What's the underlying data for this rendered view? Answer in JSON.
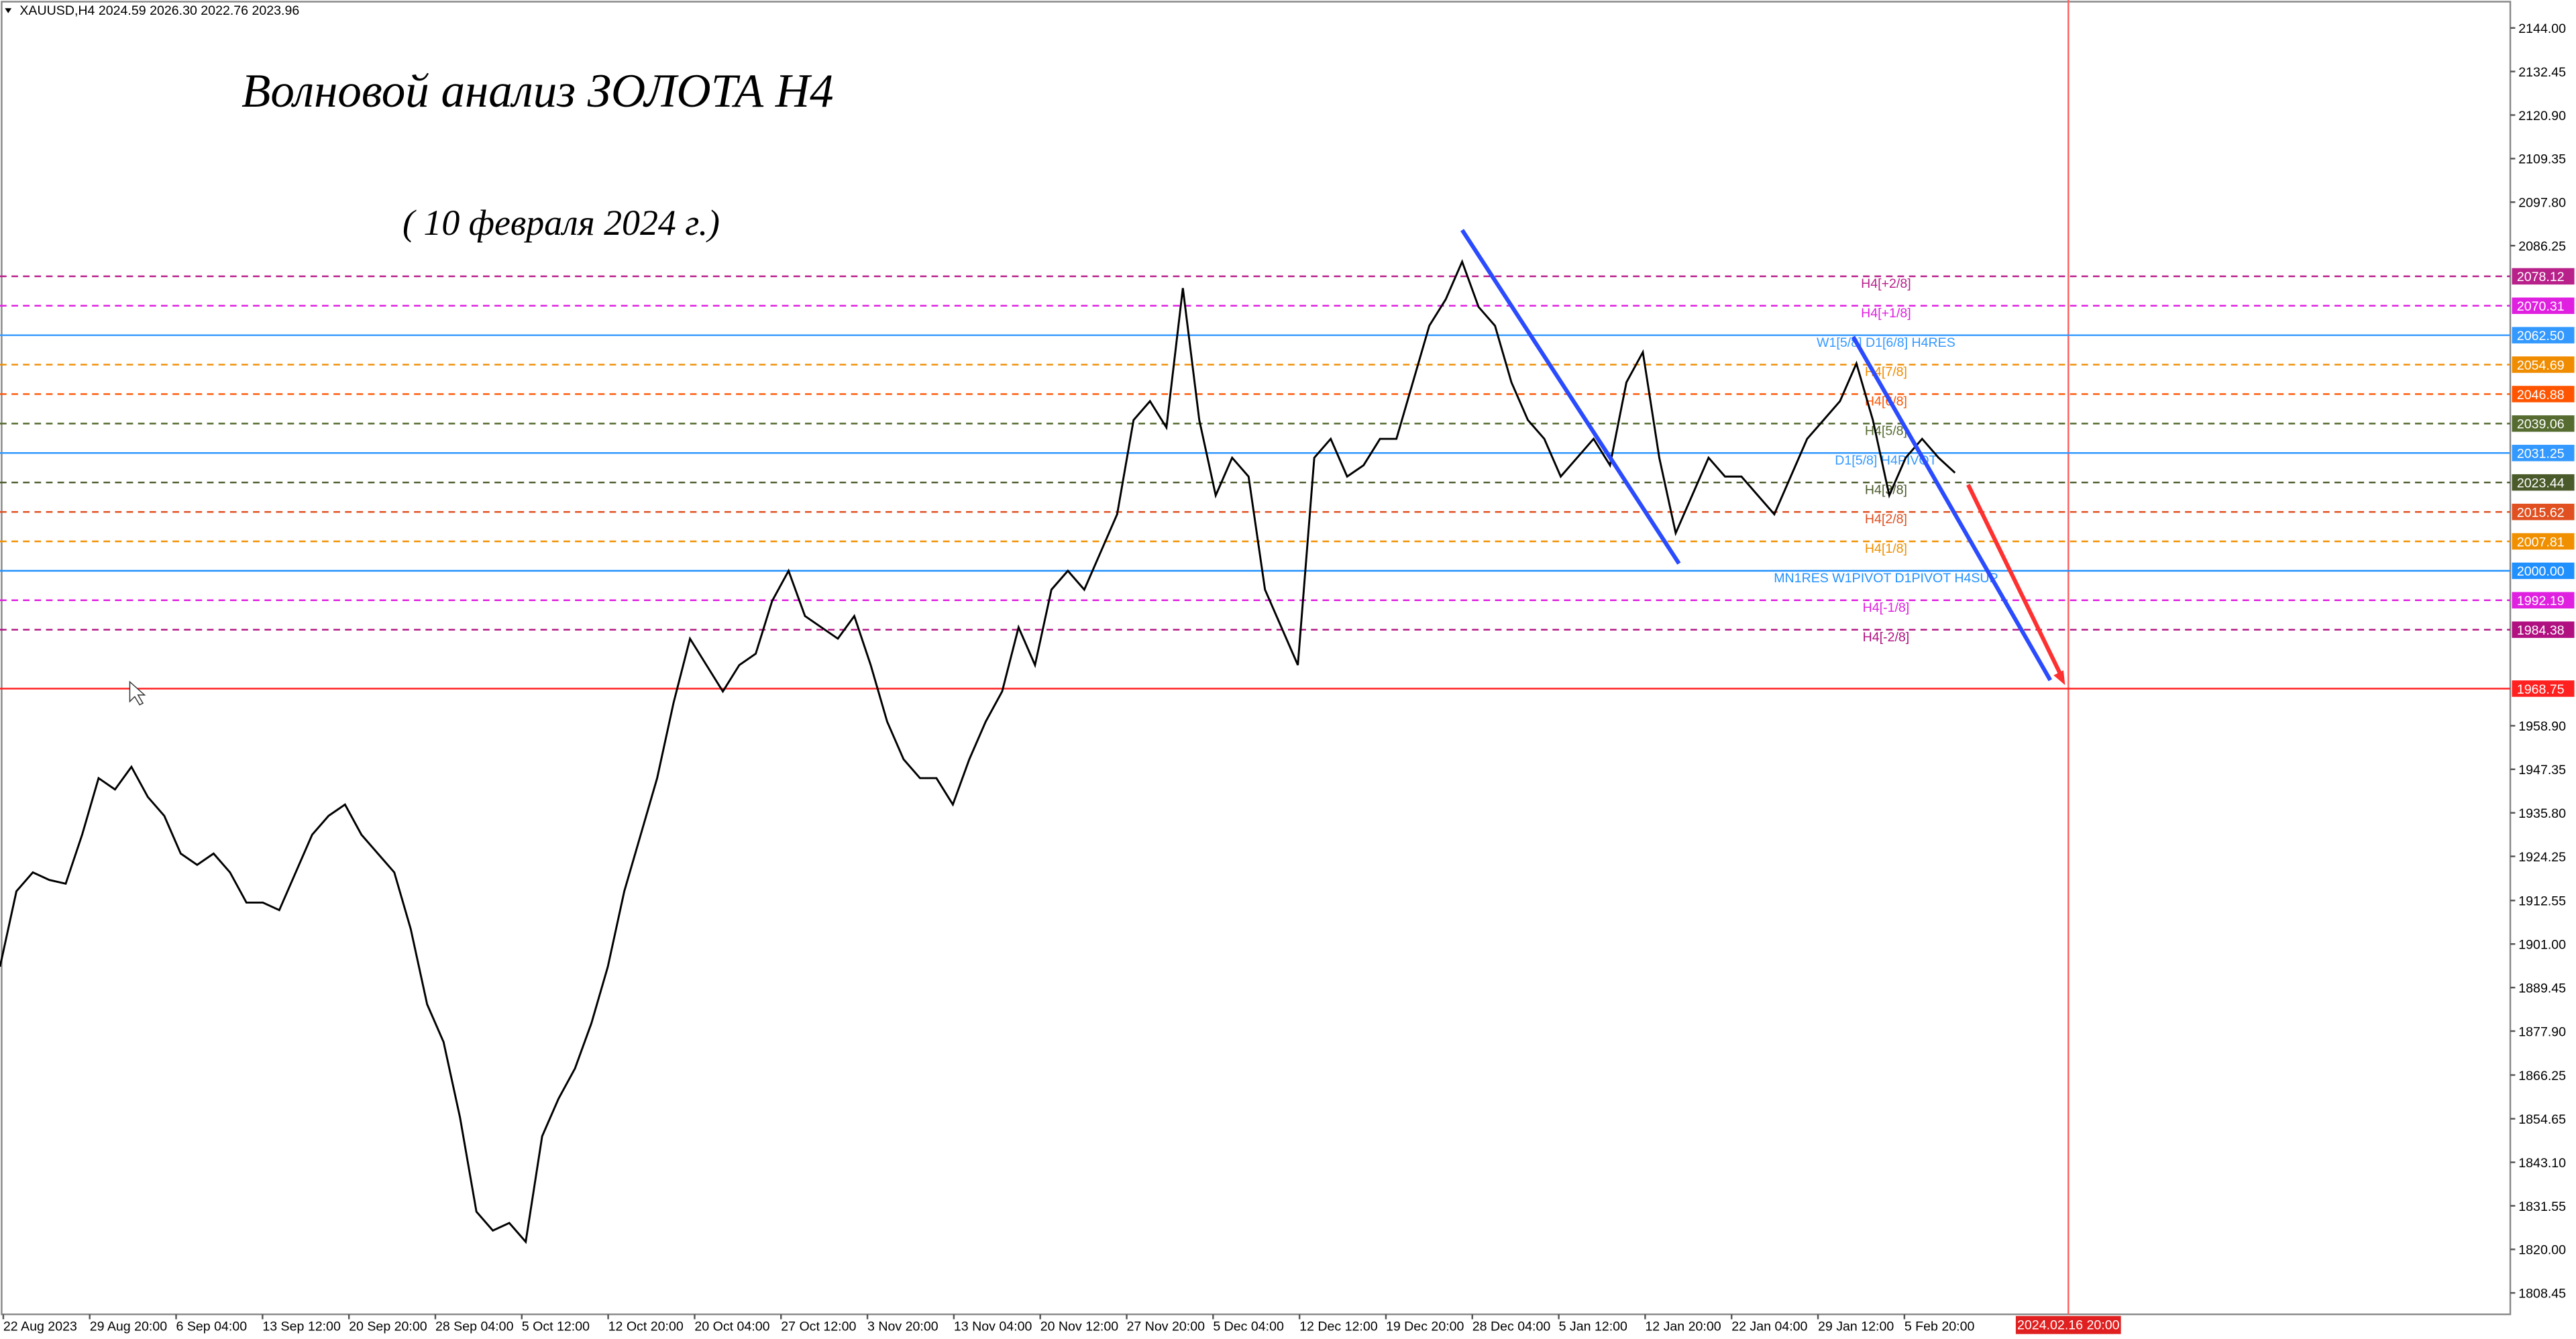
{
  "chart_data": {
    "type": "line",
    "symbol_info": "XAUUSD,H4  2024.59 2026.30 2022.76 2023.96",
    "title": "Волновой анализ ЗОЛОТА Н4",
    "subtitle": "( 10 февраля 2024 г.)",
    "color": "#000000",
    "values": [
      1895,
      1915,
      1920,
      1918,
      1917,
      1930,
      1945,
      1942,
      1948,
      1940,
      1935,
      1925,
      1922,
      1925,
      1920,
      1912,
      1912,
      1910,
      1920,
      1930,
      1935,
      1938,
      1930,
      1925,
      1920,
      1905,
      1885,
      1875,
      1855,
      1830,
      1825,
      1827,
      1822,
      1850,
      1860,
      1868,
      1880,
      1895,
      1915,
      1930,
      1945,
      1965,
      1982,
      1975,
      1968,
      1975,
      1978,
      1992,
      2000,
      1988,
      1985,
      1982,
      1988,
      1975,
      1960,
      1950,
      1945,
      1945,
      1938,
      1950,
      1960,
      1968,
      1985,
      1975,
      1995,
      2000,
      1995,
      2005,
      2015,
      2040,
      2045,
      2038,
      2075,
      2040,
      2020,
      2030,
      2025,
      1995,
      1985,
      1975,
      2030,
      2035,
      2025,
      2028,
      2035,
      2035,
      2050,
      2065,
      2072,
      2082,
      2070,
      2065,
      2050,
      2040,
      2035,
      2025,
      2030,
      2035,
      2028,
      2050,
      2058,
      2030,
      2010,
      2020,
      2030,
      2025,
      2025,
      2020,
      2015,
      2025,
      2035,
      2040,
      2045,
      2055,
      2040,
      2020,
      2030,
      2035,
      2030,
      2026
    ],
    "x_labels": [
      "22 Aug 2023",
      "29 Aug 20:00",
      "6 Sep 04:00",
      "13 Sep 12:00",
      "20 Sep 20:00",
      "28 Sep 04:00",
      "5 Oct 12:00",
      "12 Oct 20:00",
      "20 Oct 04:00",
      "27 Oct 12:00",
      "3 Nov 20:00",
      "13 Nov 04:00",
      "20 Nov 12:00",
      "27 Nov 20:00",
      "5 Dec 04:00",
      "12 Dec 12:00",
      "19 Dec 20:00",
      "28 Dec 04:00",
      "5 Jan 12:00",
      "12 Jan 20:00",
      "22 Jan 04:00",
      "29 Jan 12:00",
      "5 Feb 20:00"
    ],
    "marker_label": "2024.02.16 20:00",
    "ylim": [
      1802.77,
      2151.41
    ],
    "yticks": [
      {
        "value": 2144,
        "label": "2144.00"
      },
      {
        "value": 2132.45,
        "label": "2132.45"
      },
      {
        "value": 2120.9,
        "label": "2120.90"
      },
      {
        "value": 2109.35,
        "label": "2109.35"
      },
      {
        "value": 2097.8,
        "label": "2097.80"
      },
      {
        "value": 2086.25,
        "label": "2086.25"
      },
      {
        "value": 1958.9,
        "label": "1958.90"
      },
      {
        "value": 1947.35,
        "label": "1947.35"
      },
      {
        "value": 1935.8,
        "label": "1935.80"
      },
      {
        "value": 1924.25,
        "label": "1924.25"
      },
      {
        "value": 1912.55,
        "label": "1912.55"
      },
      {
        "value": 1901,
        "label": "1901.00"
      },
      {
        "value": 1889.45,
        "label": "1889.45"
      },
      {
        "value": 1877.9,
        "label": "1877.90"
      },
      {
        "value": 1866.25,
        "label": "1866.25"
      },
      {
        "value": 1854.65,
        "label": "1854.65"
      },
      {
        "value": 1843.1,
        "label": "1843.10"
      },
      {
        "value": 1831.55,
        "label": "1831.55"
      },
      {
        "value": 1820,
        "label": "1820.00"
      },
      {
        "value": 1808.45,
        "label": "1808.45"
      }
    ],
    "levels": [
      {
        "value": 2078.12,
        "label": "2078.12",
        "text": "H4[+2/8]",
        "color": "#b8208a",
        "dash": true
      },
      {
        "value": 2070.31,
        "label": "2070.31",
        "text": "H4[+1/8]",
        "color": "#e020e0",
        "dash": true
      },
      {
        "value": 2062.5,
        "label": "2062.50",
        "text": "W1[5/8] D1[6/8] H4RES",
        "color": "#3399ff",
        "dash": false
      },
      {
        "value": 2054.69,
        "label": "2054.69",
        "text": "H4[7/8]",
        "color": "#f08c00",
        "dash": true
      },
      {
        "value": 2046.88,
        "label": "2046.88",
        "text": "H4[6/8]",
        "color": "#ff5500",
        "dash": true
      },
      {
        "value": 2039.06,
        "label": "2039.06",
        "text": "H4[5/8]",
        "color": "#556b2f",
        "dash": true
      },
      {
        "value": 2031.25,
        "label": "2031.25",
        "text": "D1[5/8] H4PIVOT",
        "color": "#3399ff",
        "dash": false
      },
      {
        "value": 2023.44,
        "label": "2023.44",
        "text": "H4[3/8]",
        "color": "#4a5a2a",
        "dash": true
      },
      {
        "value": 2015.62,
        "label": "2015.62",
        "text": "H4[2/8]",
        "color": "#e05020",
        "dash": true
      },
      {
        "value": 2007.81,
        "label": "2007.81",
        "text": "H4[1/8]",
        "color": "#f09000",
        "dash": true
      },
      {
        "value": 2000,
        "label": "2000.00",
        "text": "MN1RES W1PIVOT D1PIVOT H4SUP",
        "color": "#2090ff",
        "dash": false
      },
      {
        "value": 1992.19,
        "label": "1992.19",
        "text": "H4[-1/8]",
        "color": "#e020e0",
        "dash": true
      },
      {
        "value": 1984.38,
        "label": "1984.38",
        "text": "H4[-2/8]",
        "color": "#b01080",
        "dash": true
      },
      {
        "value": 1968.75,
        "label": "1968.75",
        "color": "#ff2020",
        "dash": false
      }
    ]
  }
}
